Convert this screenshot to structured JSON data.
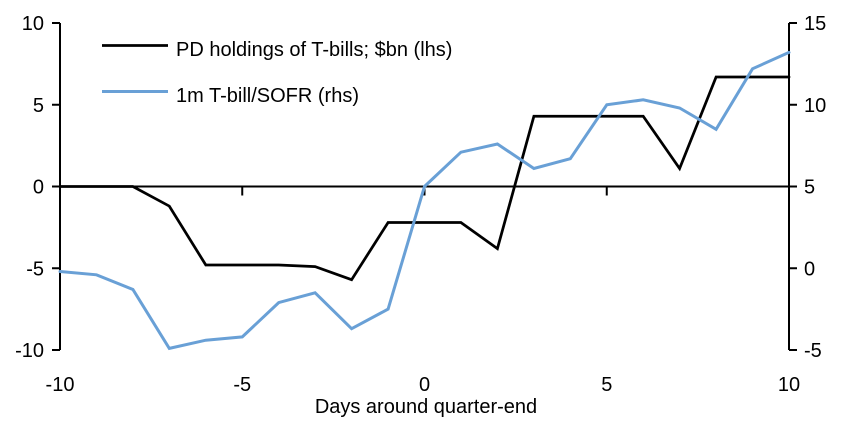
{
  "chart_data": {
    "type": "line",
    "title": "",
    "x": [
      -10,
      -9,
      -8,
      -7,
      -6,
      -5,
      -4,
      -3,
      -2,
      -1,
      0,
      1,
      2,
      3,
      4,
      5,
      6,
      7,
      8,
      9,
      10
    ],
    "series": [
      {
        "name": "PD holdings of T-bills; $bn (lhs)",
        "axis": "left",
        "color": "#000000",
        "values": [
          0,
          0,
          0,
          -1.2,
          -4.8,
          -4.8,
          -4.8,
          -4.9,
          -5.7,
          -2.2,
          -2.2,
          -2.2,
          -3.8,
          4.3,
          4.3,
          4.3,
          4.3,
          1.1,
          6.7,
          6.7,
          6.7
        ]
      },
      {
        "name": "1m T-bill/SOFR (rhs)",
        "axis": "right",
        "color": "#69A0D6",
        "values": [
          -0.2,
          -0.4,
          -1.3,
          -4.9,
          -4.4,
          -4.2,
          -2.1,
          -1.5,
          -3.7,
          -2.5,
          5.0,
          7.1,
          7.6,
          6.1,
          6.7,
          10.0,
          10.3,
          9.8,
          8.5,
          12.2,
          13.2
        ]
      }
    ],
    "x_axis": {
      "label": "Days around quarter-end",
      "min": -10,
      "max": 10,
      "ticks": [
        -10,
        -5,
        0,
        5,
        10
      ],
      "zero_line": true
    },
    "left_axis": {
      "min": -10,
      "max": 10,
      "ticks": [
        10,
        5,
        0,
        -5,
        -10
      ]
    },
    "right_axis": {
      "min": -5,
      "max": 15,
      "ticks": [
        15,
        10,
        5,
        0,
        -5
      ]
    },
    "grid": false,
    "legend_position": "top-left",
    "background": "#ffffff"
  }
}
